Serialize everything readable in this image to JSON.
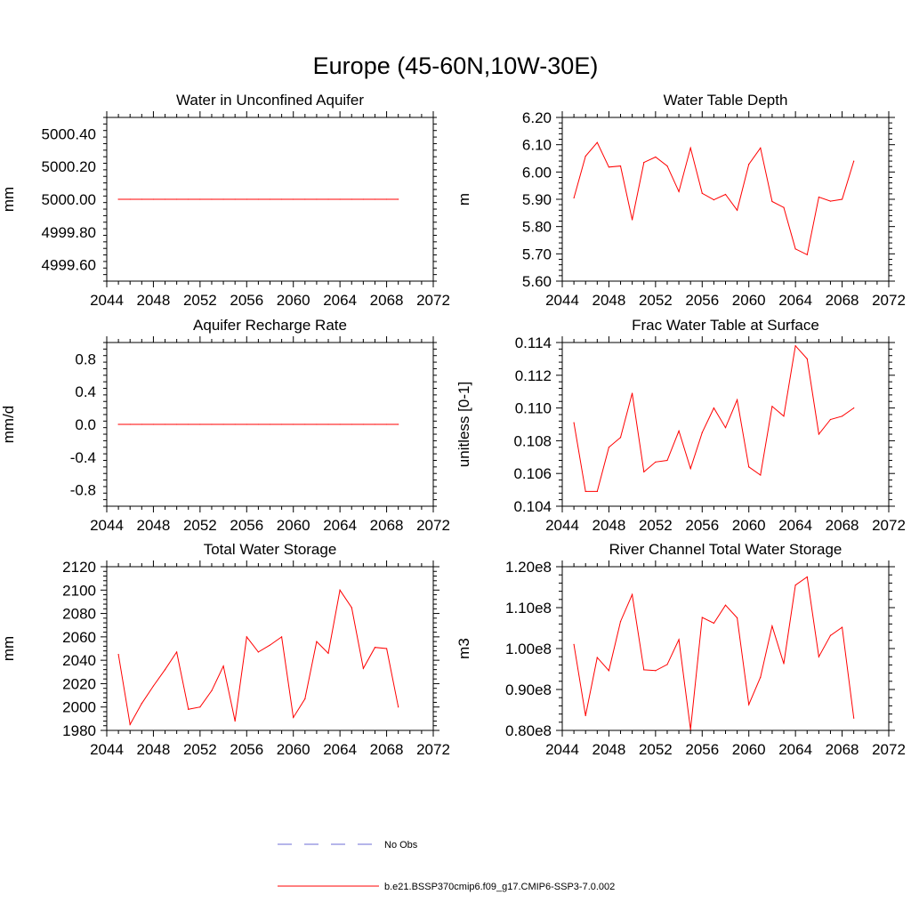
{
  "figure_title": "Europe (45-60N,10W-30E)",
  "colors": {
    "model": "#ff0000",
    "obs": "#6b6bd6",
    "axis": "#000000"
  },
  "legend": {
    "obs_label": "No Obs",
    "model_label": "b.e21.BSSP370cmip6.f09_g17.CMIP6-SSP3-7.0.002"
  },
  "chart_data": [
    {
      "type": "line",
      "title": "Water in Unconfined Aquifer",
      "ylabel": "mm",
      "xlim": [
        2044,
        2072
      ],
      "ylim": [
        4999.5,
        5000.5
      ],
      "xticks": [
        2044,
        2048,
        2052,
        2056,
        2060,
        2064,
        2068,
        2072
      ],
      "xtick_labels": [
        "2044",
        "2048",
        "2052",
        "2056",
        "2060",
        "2064",
        "2068",
        "2072"
      ],
      "yticks": [
        4999.6,
        4999.8,
        5000.0,
        5000.2,
        5000.4
      ],
      "ytick_labels": [
        "4999.60",
        "4999.80",
        "5000.00",
        "5000.20",
        "5000.40"
      ],
      "x": [
        2045,
        2046,
        2047,
        2048,
        2049,
        2050,
        2051,
        2052,
        2053,
        2054,
        2055,
        2056,
        2057,
        2058,
        2059,
        2060,
        2061,
        2062,
        2063,
        2064,
        2065,
        2066,
        2067,
        2068,
        2069
      ],
      "series": [
        {
          "name": "b.e21.BSSP370cmip6.f09_g17.CMIP6-SSP3-7.0.002",
          "values": [
            5000,
            5000,
            5000,
            5000,
            5000,
            5000,
            5000,
            5000,
            5000,
            5000,
            5000,
            5000,
            5000,
            5000,
            5000,
            5000,
            5000,
            5000,
            5000,
            5000,
            5000,
            5000,
            5000,
            5000,
            5000
          ]
        }
      ]
    },
    {
      "type": "line",
      "title": "Water Table Depth",
      "ylabel": "m",
      "xlim": [
        2044,
        2072
      ],
      "ylim": [
        5.6,
        6.2
      ],
      "xticks": [
        2044,
        2048,
        2052,
        2056,
        2060,
        2064,
        2068,
        2072
      ],
      "xtick_labels": [
        "2044",
        "2048",
        "2052",
        "2056",
        "2060",
        "2064",
        "2068",
        "2072"
      ],
      "yticks": [
        5.6,
        5.7,
        5.8,
        5.9,
        6.0,
        6.1,
        6.2
      ],
      "ytick_labels": [
        "5.60",
        "5.70",
        "5.80",
        "5.90",
        "6.00",
        "6.10",
        "6.20"
      ],
      "x": [
        2045,
        2046,
        2047,
        2048,
        2049,
        2050,
        2051,
        2052,
        2053,
        2054,
        2055,
        2056,
        2057,
        2058,
        2059,
        2060,
        2061,
        2062,
        2063,
        2064,
        2065,
        2066,
        2067,
        2068,
        2069
      ],
      "series": [
        {
          "name": "b.e21.BSSP370cmip6.f09_g17.CMIP6-SSP3-7.0.002",
          "values": [
            5.905,
            6.058,
            6.108,
            6.018,
            6.022,
            5.825,
            6.035,
            6.055,
            6.022,
            5.928,
            6.088,
            5.922,
            5.898,
            5.918,
            5.86,
            6.028,
            6.088,
            5.892,
            5.87,
            5.718,
            5.697,
            5.908,
            5.893,
            5.9,
            6.04
          ]
        }
      ]
    },
    {
      "type": "line",
      "title": "Aquifer Recharge Rate",
      "ylabel": "mm/d",
      "xlim": [
        2044,
        2072
      ],
      "ylim": [
        -1.0,
        1.0
      ],
      "xticks": [
        2044,
        2048,
        2052,
        2056,
        2060,
        2064,
        2068,
        2072
      ],
      "xtick_labels": [
        "2044",
        "2048",
        "2052",
        "2056",
        "2060",
        "2064",
        "2068",
        "2072"
      ],
      "yticks": [
        -0.8,
        -0.4,
        0.0,
        0.4,
        0.8
      ],
      "ytick_labels": [
        "-0.8",
        "-0.4",
        "0.0",
        "0.4",
        "0.8"
      ],
      "x": [
        2045,
        2046,
        2047,
        2048,
        2049,
        2050,
        2051,
        2052,
        2053,
        2054,
        2055,
        2056,
        2057,
        2058,
        2059,
        2060,
        2061,
        2062,
        2063,
        2064,
        2065,
        2066,
        2067,
        2068,
        2069
      ],
      "series": [
        {
          "name": "b.e21.BSSP370cmip6.f09_g17.CMIP6-SSP3-7.0.002",
          "values": [
            0,
            0,
            0,
            0,
            0,
            0,
            0,
            0,
            0,
            0,
            0,
            0,
            0,
            0,
            0,
            0,
            0,
            0,
            0,
            0,
            0,
            0,
            0,
            0,
            0
          ]
        }
      ]
    },
    {
      "type": "line",
      "title": "Frac Water Table at Surface",
      "ylabel": "unitless [0-1]",
      "xlim": [
        2044,
        2072
      ],
      "ylim": [
        0.104,
        0.114
      ],
      "xticks": [
        2044,
        2048,
        2052,
        2056,
        2060,
        2064,
        2068,
        2072
      ],
      "xtick_labels": [
        "2044",
        "2048",
        "2052",
        "2056",
        "2060",
        "2064",
        "2068",
        "2072"
      ],
      "yticks": [
        0.104,
        0.106,
        0.108,
        0.11,
        0.112,
        0.114
      ],
      "ytick_labels": [
        "0.104",
        "0.106",
        "0.108",
        "0.110",
        "0.112",
        "0.114"
      ],
      "x": [
        2045,
        2046,
        2047,
        2048,
        2049,
        2050,
        2051,
        2052,
        2053,
        2054,
        2055,
        2056,
        2057,
        2058,
        2059,
        2060,
        2061,
        2062,
        2063,
        2064,
        2065,
        2066,
        2067,
        2068,
        2069
      ],
      "series": [
        {
          "name": "b.e21.BSSP370cmip6.f09_g17.CMIP6-SSP3-7.0.002",
          "values": [
            0.1091,
            0.1049,
            0.1049,
            0.1076,
            0.1082,
            0.1109,
            0.1061,
            0.1067,
            0.1068,
            0.1086,
            0.1063,
            0.1085,
            0.11,
            0.1088,
            0.1105,
            0.1064,
            0.1059,
            0.1101,
            0.1095,
            0.1138,
            0.113,
            0.1084,
            0.1093,
            0.1095,
            0.11
          ]
        }
      ]
    },
    {
      "type": "line",
      "title": "Total Water Storage",
      "ylabel": "mm",
      "xlim": [
        2044,
        2072
      ],
      "ylim": [
        1980,
        2120
      ],
      "xticks": [
        2044,
        2048,
        2052,
        2056,
        2060,
        2064,
        2068,
        2072
      ],
      "xtick_labels": [
        "2044",
        "2048",
        "2052",
        "2056",
        "2060",
        "2064",
        "2068",
        "2072"
      ],
      "yticks": [
        1980,
        2000,
        2020,
        2040,
        2060,
        2080,
        2100,
        2120
      ],
      "ytick_labels": [
        "1980",
        "2000",
        "2020",
        "2040",
        "2060",
        "2080",
        "2100",
        "2120"
      ],
      "x": [
        2045,
        2046,
        2047,
        2048,
        2049,
        2050,
        2051,
        2052,
        2053,
        2054,
        2055,
        2056,
        2057,
        2058,
        2059,
        2060,
        2061,
        2062,
        2063,
        2064,
        2065,
        2066,
        2067,
        2068,
        2069
      ],
      "series": [
        {
          "name": "b.e21.BSSP370cmip6.f09_g17.CMIP6-SSP3-7.0.002",
          "values": [
            2045,
            1985,
            2003,
            2018,
            2032,
            2047,
            1998,
            2000,
            2014,
            2035,
            1988,
            2060,
            2047,
            2053,
            2060,
            1991,
            2007,
            2056,
            2046,
            2100,
            2085,
            2033,
            2051,
            2050,
            2000
          ]
        }
      ]
    },
    {
      "type": "line",
      "title": "River Channel Total Water Storage",
      "ylabel": "m3",
      "xlim": [
        2044,
        2072
      ],
      "ylim": [
        0.8,
        1.2
      ],
      "yunits": "1e8",
      "xticks": [
        2044,
        2048,
        2052,
        2056,
        2060,
        2064,
        2068,
        2072
      ],
      "xtick_labels": [
        "2044",
        "2048",
        "2052",
        "2056",
        "2060",
        "2064",
        "2068",
        "2072"
      ],
      "yticks": [
        0.8,
        0.9,
        1.0,
        1.1,
        1.2
      ],
      "ytick_labels": [
        "0.80e8",
        "0.90e8",
        "1.00e8",
        "1.10e8",
        "1.20e8"
      ],
      "x": [
        2045,
        2046,
        2047,
        2048,
        2049,
        2050,
        2051,
        2052,
        2053,
        2054,
        2055,
        2056,
        2057,
        2058,
        2059,
        2060,
        2061,
        2062,
        2063,
        2064,
        2065,
        2066,
        2067,
        2068,
        2069
      ],
      "series": [
        {
          "name": "b.e21.BSSP370cmip6.f09_g17.CMIP6-SSP3-7.0.002",
          "values": [
            1.01,
            0.836,
            0.978,
            0.946,
            1.066,
            1.132,
            0.948,
            0.946,
            0.961,
            1.022,
            0.802,
            1.076,
            1.062,
            1.106,
            1.075,
            0.863,
            0.93,
            1.055,
            0.963,
            1.155,
            1.175,
            0.98,
            1.032,
            1.052,
            0.83
          ]
        }
      ]
    }
  ]
}
